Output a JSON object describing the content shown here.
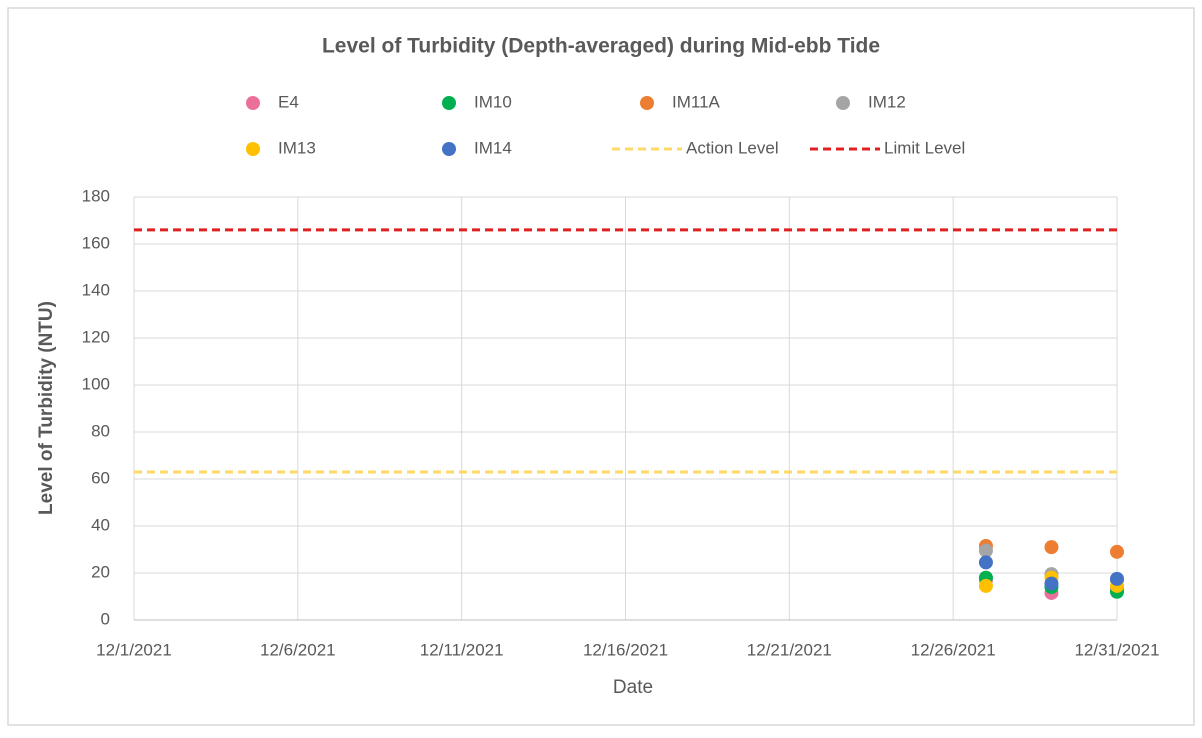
{
  "chart_data": {
    "type": "scatter",
    "title": "Level of Turbidity (Depth-averaged) during Mid-ebb Tide",
    "x_label": "Date",
    "y_label": "Level of Turbidity (NTU)",
    "x": [
      "12/27/2021",
      "12/29/2021",
      "12/31/2021"
    ],
    "xlim": [
      "12/1/2021",
      "12/31/2021"
    ],
    "xticks": [
      "12/1/2021",
      "12/6/2021",
      "12/11/2021",
      "12/16/2021",
      "12/21/2021",
      "12/26/2021",
      "12/31/2021"
    ],
    "ylim": [
      0,
      180
    ],
    "yticks": [
      0,
      20,
      40,
      60,
      80,
      100,
      120,
      140,
      160,
      180
    ],
    "grid": true,
    "series": [
      {
        "name": "E4",
        "color": "#ea6f9a",
        "values": [
          17,
          11.5,
          13
        ]
      },
      {
        "name": "IM10",
        "color": "#00b050",
        "values": [
          18,
          14,
          12
        ]
      },
      {
        "name": "IM11A",
        "color": "#ed7d31",
        "values": [
          31.5,
          31,
          29
        ]
      },
      {
        "name": "IM12",
        "color": "#a5a5a5",
        "values": [
          29.5,
          19.5,
          17
        ]
      },
      {
        "name": "IM13",
        "color": "#ffc000",
        "values": [
          14.5,
          18,
          14.5
        ]
      },
      {
        "name": "IM14",
        "color": "#4472c4",
        "values": [
          24.5,
          15.5,
          17.5
        ]
      }
    ],
    "reference_lines": [
      {
        "name": "Action Level",
        "color": "#ffd966",
        "value": 63
      },
      {
        "name": "Limit Level",
        "color": "#e02020",
        "value": 166
      }
    ]
  }
}
